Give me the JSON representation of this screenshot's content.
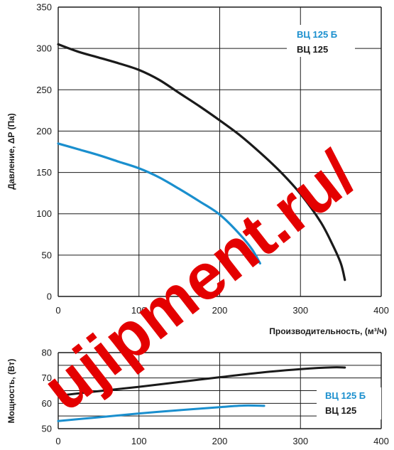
{
  "chart_data": [
    {
      "type": "line",
      "ylabel": "Давление, ΔP (Па)",
      "xlabel": "Производительность, (м³/ч)",
      "xlim": [
        0,
        400
      ],
      "ylim": [
        0,
        350
      ],
      "x_ticks": [
        "0",
        "100",
        "200",
        "300",
        "400"
      ],
      "y_ticks": [
        "0",
        "50",
        "100",
        "150",
        "200",
        "250",
        "300",
        "350"
      ],
      "grid": "horizontal and vertical",
      "legend": [
        "ВЦ 125 Б",
        "ВЦ 125"
      ],
      "legend_position": "top-right",
      "series": [
        {
          "name": "ВЦ 125 Б",
          "color": "#1a8fce",
          "x": [
            0,
            25,
            50,
            75,
            100,
            125,
            150,
            175,
            200,
            225,
            240,
            250
          ],
          "y": [
            185,
            178,
            171,
            163,
            155,
            144,
            130,
            115,
            99,
            75,
            57,
            40
          ]
        },
        {
          "name": "ВЦ 125",
          "color": "#1a1a1a",
          "x": [
            0,
            25,
            50,
            75,
            100,
            125,
            150,
            175,
            200,
            225,
            250,
            275,
            300,
            325,
            340,
            350,
            355
          ],
          "y": [
            305,
            296,
            289,
            282,
            274,
            262,
            246,
            230,
            213,
            195,
            174,
            151,
            124,
            90,
            62,
            40,
            20
          ]
        }
      ]
    },
    {
      "type": "line",
      "ylabel": "Мощность, (Вт)",
      "xlabel": "",
      "xlim": [
        0,
        400
      ],
      "ylim": [
        50,
        80
      ],
      "x_ticks": [
        "0",
        "100",
        "200",
        "300",
        "400"
      ],
      "y_ticks": [
        "50",
        "60",
        "70",
        "80"
      ],
      "grid": "horizontal and vertical",
      "legend": [
        "ВЦ 125 Б",
        "ВЦ 125"
      ],
      "legend_position": "bottom-right",
      "series": [
        {
          "name": "ВЦ 125 Б",
          "color": "#1a8fce",
          "x": [
            0,
            50,
            100,
            150,
            200,
            230,
            255
          ],
          "y": [
            53,
            54.5,
            56,
            57.3,
            58.5,
            59.1,
            59
          ]
        },
        {
          "name": "ВЦ 125",
          "color": "#1a1a1a",
          "x": [
            0,
            50,
            100,
            150,
            200,
            250,
            300,
            340,
            355
          ],
          "y": [
            63,
            64.8,
            66.5,
            68.4,
            70.3,
            72.1,
            73.5,
            74.2,
            74.1
          ]
        }
      ]
    }
  ],
  "watermark": "ujipment.ru/",
  "colors": {
    "axis": "#1a1a1a",
    "grid": "#1a1a1a",
    "blue": "#1a8fce",
    "black": "#1a1a1a",
    "watermark": "#e40000"
  }
}
